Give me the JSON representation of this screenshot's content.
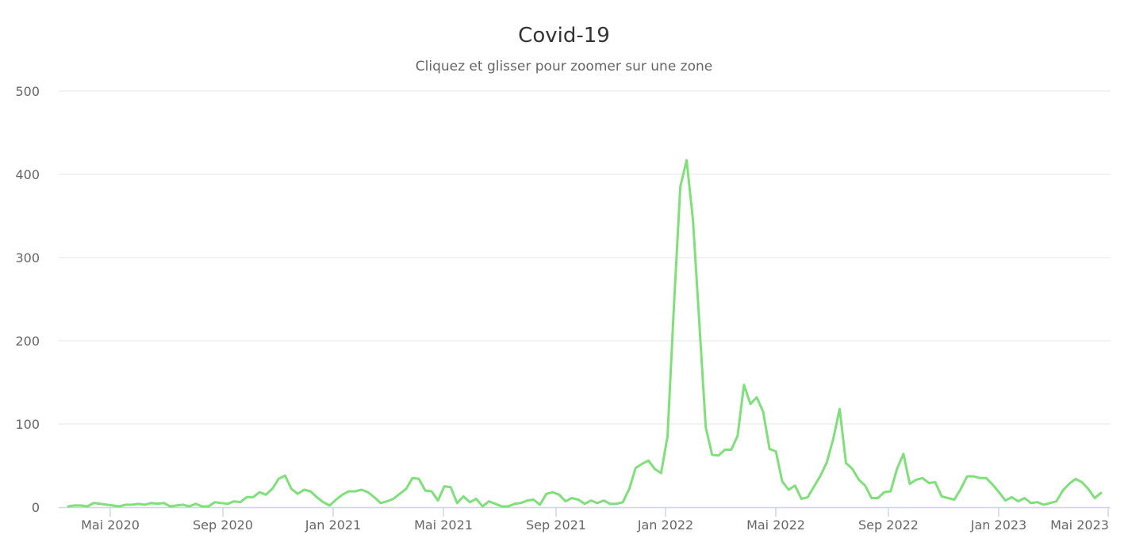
{
  "chart_data": {
    "type": "line",
    "title": "Covid-19",
    "subtitle": "Cliquez et glisser pour zoomer sur une zone",
    "xlabel": "",
    "ylabel": "",
    "ylim": [
      0,
      500
    ],
    "yticks": [
      0,
      100,
      200,
      300,
      400,
      500
    ],
    "xticks": [
      "Mai 2020",
      "Sep 2020",
      "Jan 2021",
      "Mai 2021",
      "Sep 2021",
      "Jan 2022",
      "Mai 2022",
      "Sep 2022",
      "Jan 2023",
      "Mai 2023"
    ],
    "grid": true,
    "legend": "none",
    "line_color": "#7fe07a",
    "x_start": "2020-03-16",
    "x_interval": "weekly",
    "series": [
      {
        "name": "Covid-19",
        "values": [
          1,
          2,
          2,
          1,
          5,
          4,
          3,
          2,
          1,
          3,
          3,
          4,
          3,
          5,
          4,
          5,
          1,
          2,
          3,
          1,
          4,
          1,
          1,
          6,
          5,
          4,
          7,
          6,
          12,
          12,
          18,
          15,
          22,
          34,
          38,
          22,
          16,
          21,
          19,
          12,
          6,
          2,
          9,
          15,
          19,
          19,
          21,
          18,
          12,
          5,
          7,
          10,
          16,
          22,
          35,
          34,
          20,
          19,
          8,
          25,
          24,
          5,
          13,
          6,
          10,
          1,
          7,
          4,
          1,
          1,
          4,
          5,
          8,
          9,
          3,
          16,
          18,
          15,
          7,
          11,
          9,
          4,
          8,
          5,
          8,
          4,
          4,
          6,
          22,
          47,
          52,
          56,
          46,
          41,
          85,
          240,
          385,
          417,
          345,
          220,
          96,
          63,
          62,
          69,
          69,
          86,
          147,
          124,
          132,
          115,
          70,
          67,
          31,
          21,
          26,
          10,
          12,
          25,
          38,
          54,
          82,
          118,
          53,
          46,
          33,
          26,
          11,
          11,
          18,
          19,
          46,
          64,
          28,
          33,
          35,
          29,
          30,
          13,
          11,
          9,
          22,
          37,
          37,
          35,
          35,
          27,
          18,
          8,
          12,
          7,
          11,
          5,
          6,
          3,
          5,
          7,
          20,
          28,
          34,
          30,
          22,
          11,
          17
        ]
      }
    ]
  }
}
